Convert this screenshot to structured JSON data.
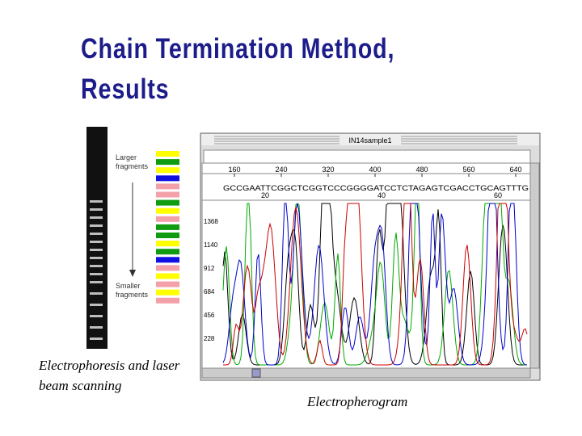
{
  "title": "Chain Termination Method, Results",
  "gel": {
    "top_label": "Larger fragments",
    "bottom_label": "Smaller fragments"
  },
  "left_caption": "Electrophoresis and laser beam scanning",
  "right_caption": "Electropherogram",
  "window": {
    "title": "IN14sample1",
    "ruler": [
      "160",
      "240",
      "320",
      "400",
      "480",
      "560",
      "640"
    ],
    "sequence": "GCCGAATTCGGCTCGGTCCCGGGGATCCTCTAGAGTCGACCTGCAGTTTG",
    "sequence_positions": [
      "20",
      "40",
      "60"
    ],
    "y_labels": [
      "1368",
      "1140",
      "912",
      "684",
      "456",
      "228"
    ]
  }
}
